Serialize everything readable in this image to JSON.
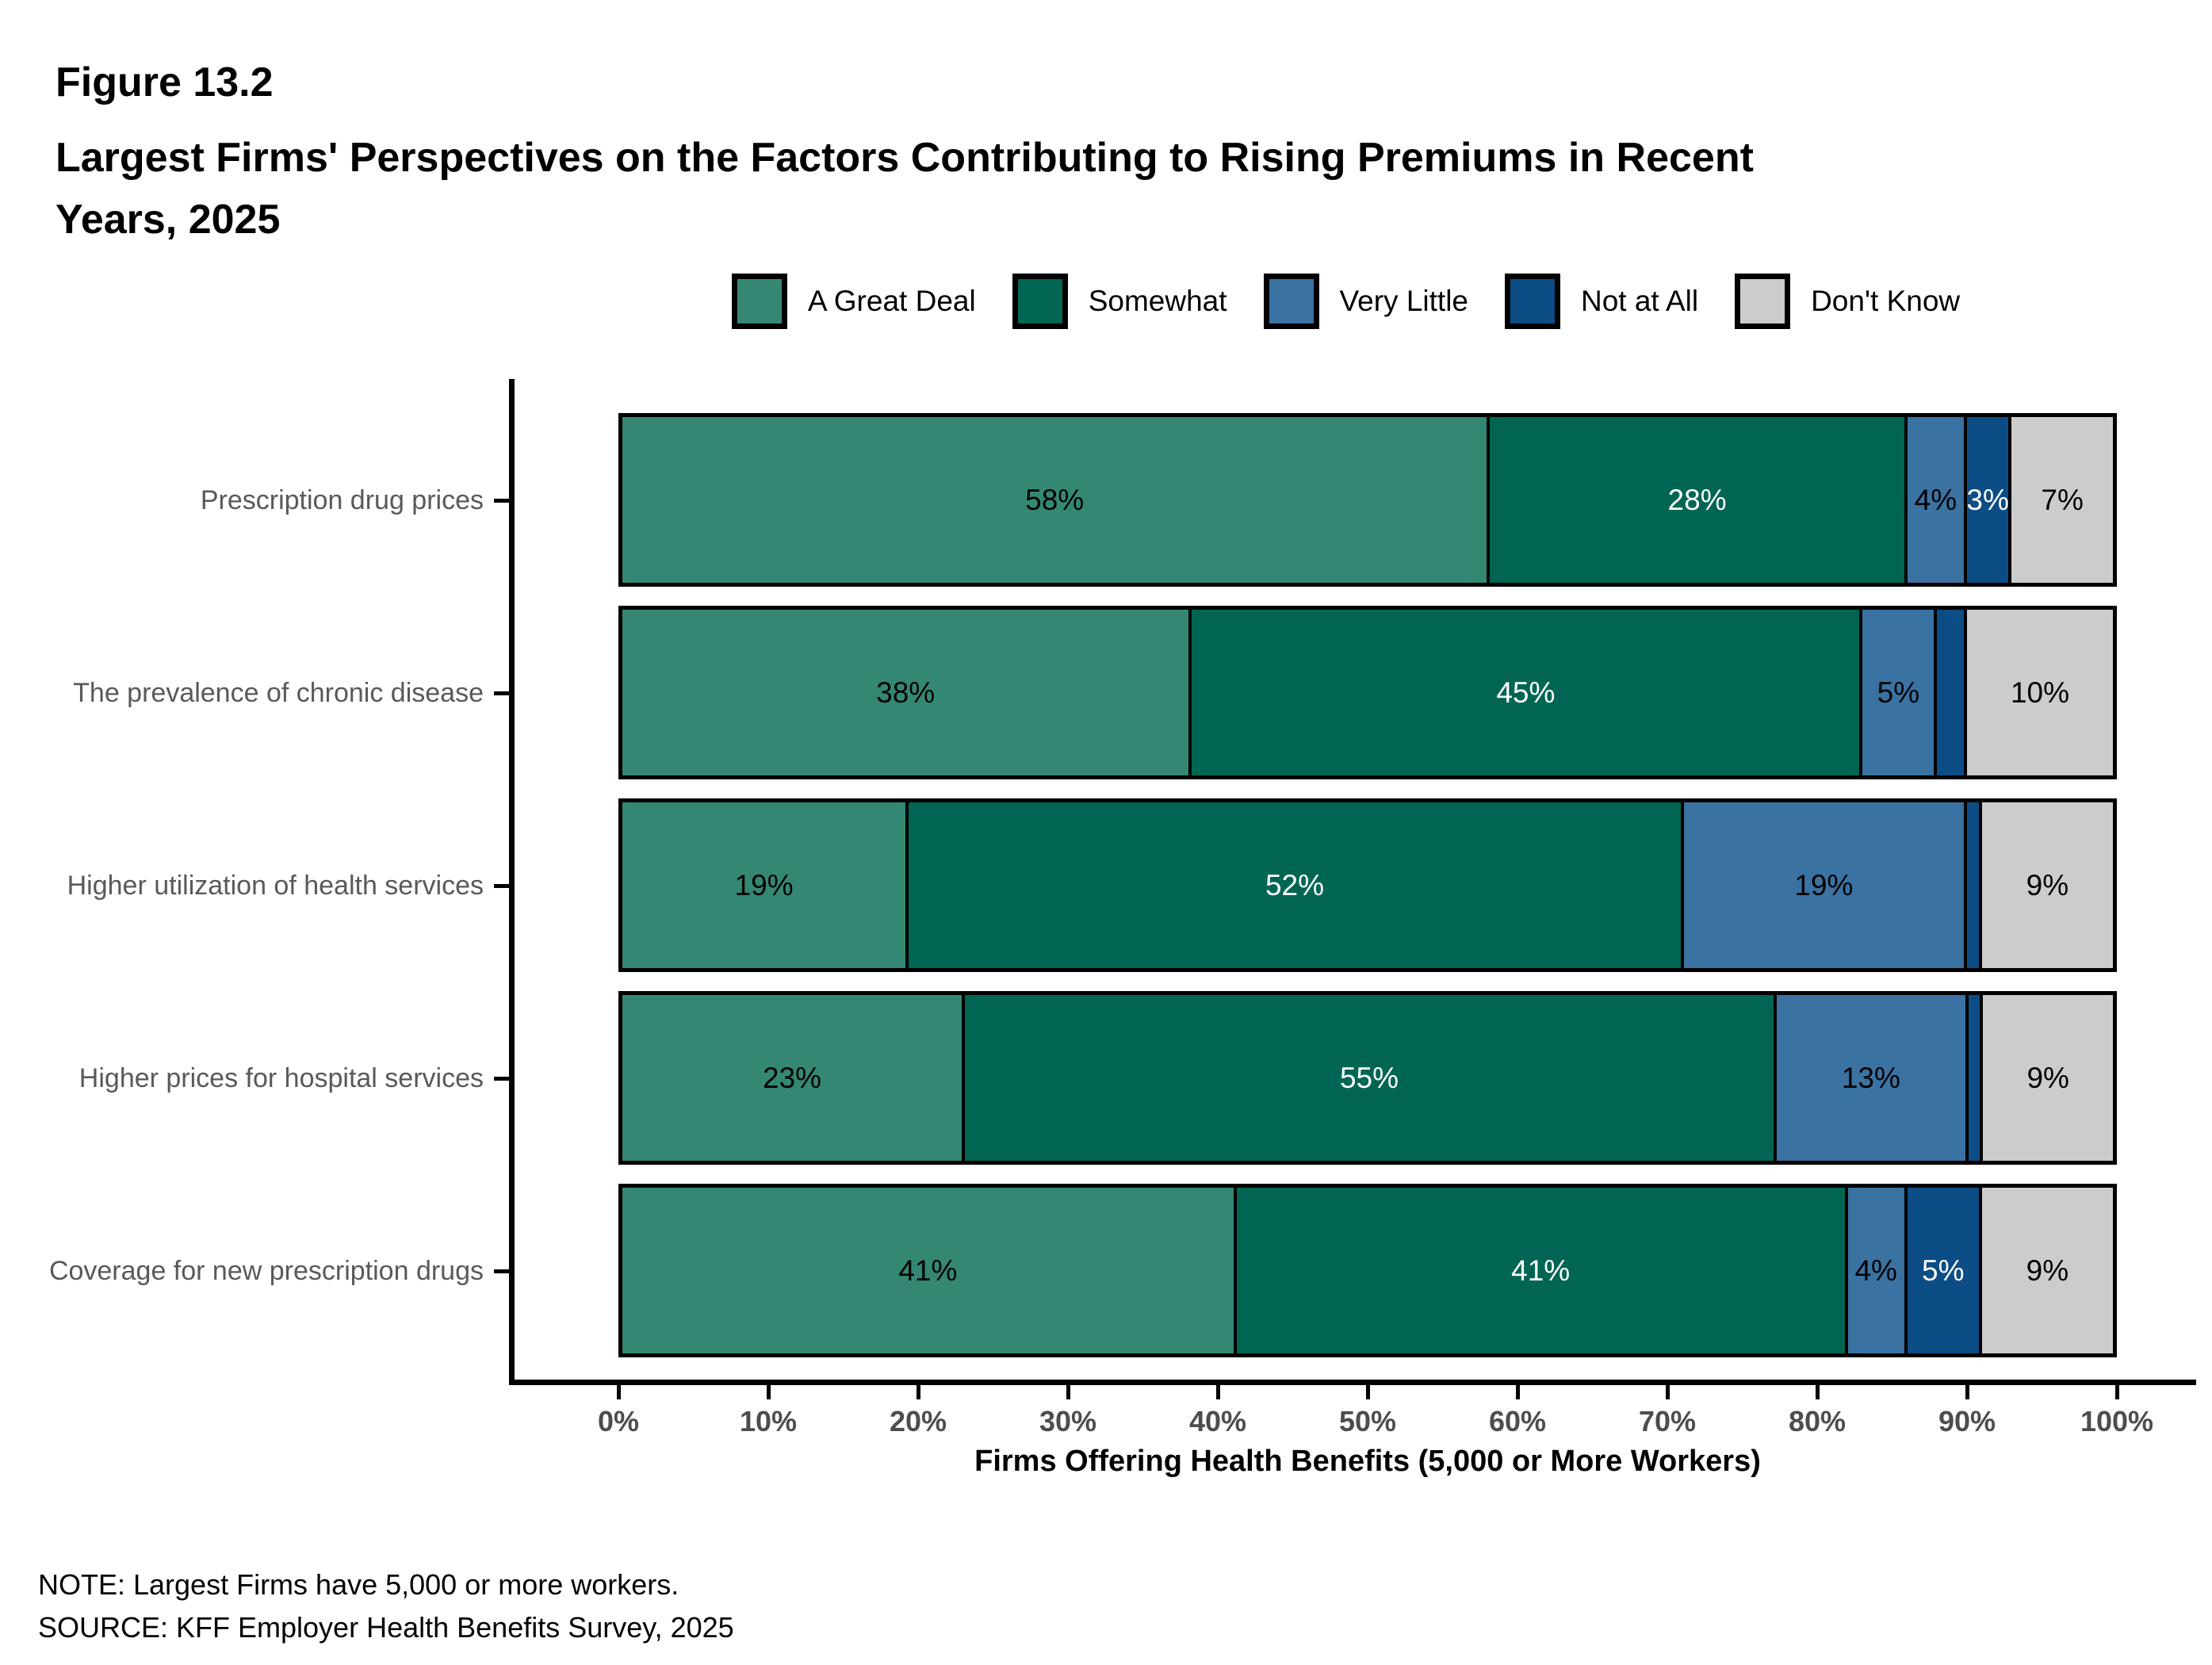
{
  "figure_number": "Figure 13.2",
  "title_lines": [
    "Largest Firms' Perspectives on the Factors Contributing to Rising Premiums in Recent",
    "Years, 2025"
  ],
  "note": "NOTE: Largest Firms have 5,000 or more workers.",
  "source": "SOURCE: KFF Employer Health Benefits Survey, 2025",
  "chart_data": {
    "type": "bar",
    "orientation": "horizontal-stacked",
    "title": "Largest Firms' Perspectives on the Factors Contributing to Rising Premiums in Recent Years, 2025",
    "xlabel": "Firms Offering Health Benefits (5,000 or More Workers)",
    "ylabel": "",
    "xlim": [
      0,
      100
    ],
    "grid": false,
    "legend_position": "top",
    "x_ticks": [
      "0%",
      "10%",
      "20%",
      "30%",
      "40%",
      "50%",
      "60%",
      "70%",
      "80%",
      "90%",
      "100%"
    ],
    "categories": [
      "Prescription drug prices",
      "The prevalence of chronic disease",
      "Higher utilization of health services",
      "Higher prices for hospital services",
      "Coverage for new prescription drugs"
    ],
    "series": [
      {
        "name": "A Great Deal",
        "color": "#348873",
        "label_color": "#000000",
        "values": [
          58,
          38,
          19,
          23,
          41
        ],
        "labels": [
          "58%",
          "38%",
          "19%",
          "23%",
          "41%"
        ]
      },
      {
        "name": "Somewhat",
        "color": "#006653",
        "label_color": "#ffffff",
        "values": [
          28,
          45,
          52,
          55,
          41
        ],
        "labels": [
          "28%",
          "45%",
          "52%",
          "55%",
          "41%"
        ]
      },
      {
        "name": "Very Little",
        "color": "#3a72a2",
        "label_color": "#000000",
        "values": [
          4,
          5,
          19,
          13,
          4
        ],
        "labels": [
          "4%",
          "5%",
          "19%",
          "13%",
          "4%"
        ]
      },
      {
        "name": "Not at All",
        "color": "#0c4d85",
        "label_color": "#ffffff",
        "values": [
          3,
          2,
          1,
          1,
          5
        ],
        "labels": [
          "3%",
          "",
          "",
          "",
          "5%"
        ]
      },
      {
        "name": "Don't Know",
        "color": "#cccccc",
        "label_color": "#000000",
        "values": [
          7,
          10,
          9,
          9,
          9
        ],
        "labels": [
          "7%",
          "10%",
          "9%",
          "9%",
          "9%"
        ]
      }
    ]
  }
}
